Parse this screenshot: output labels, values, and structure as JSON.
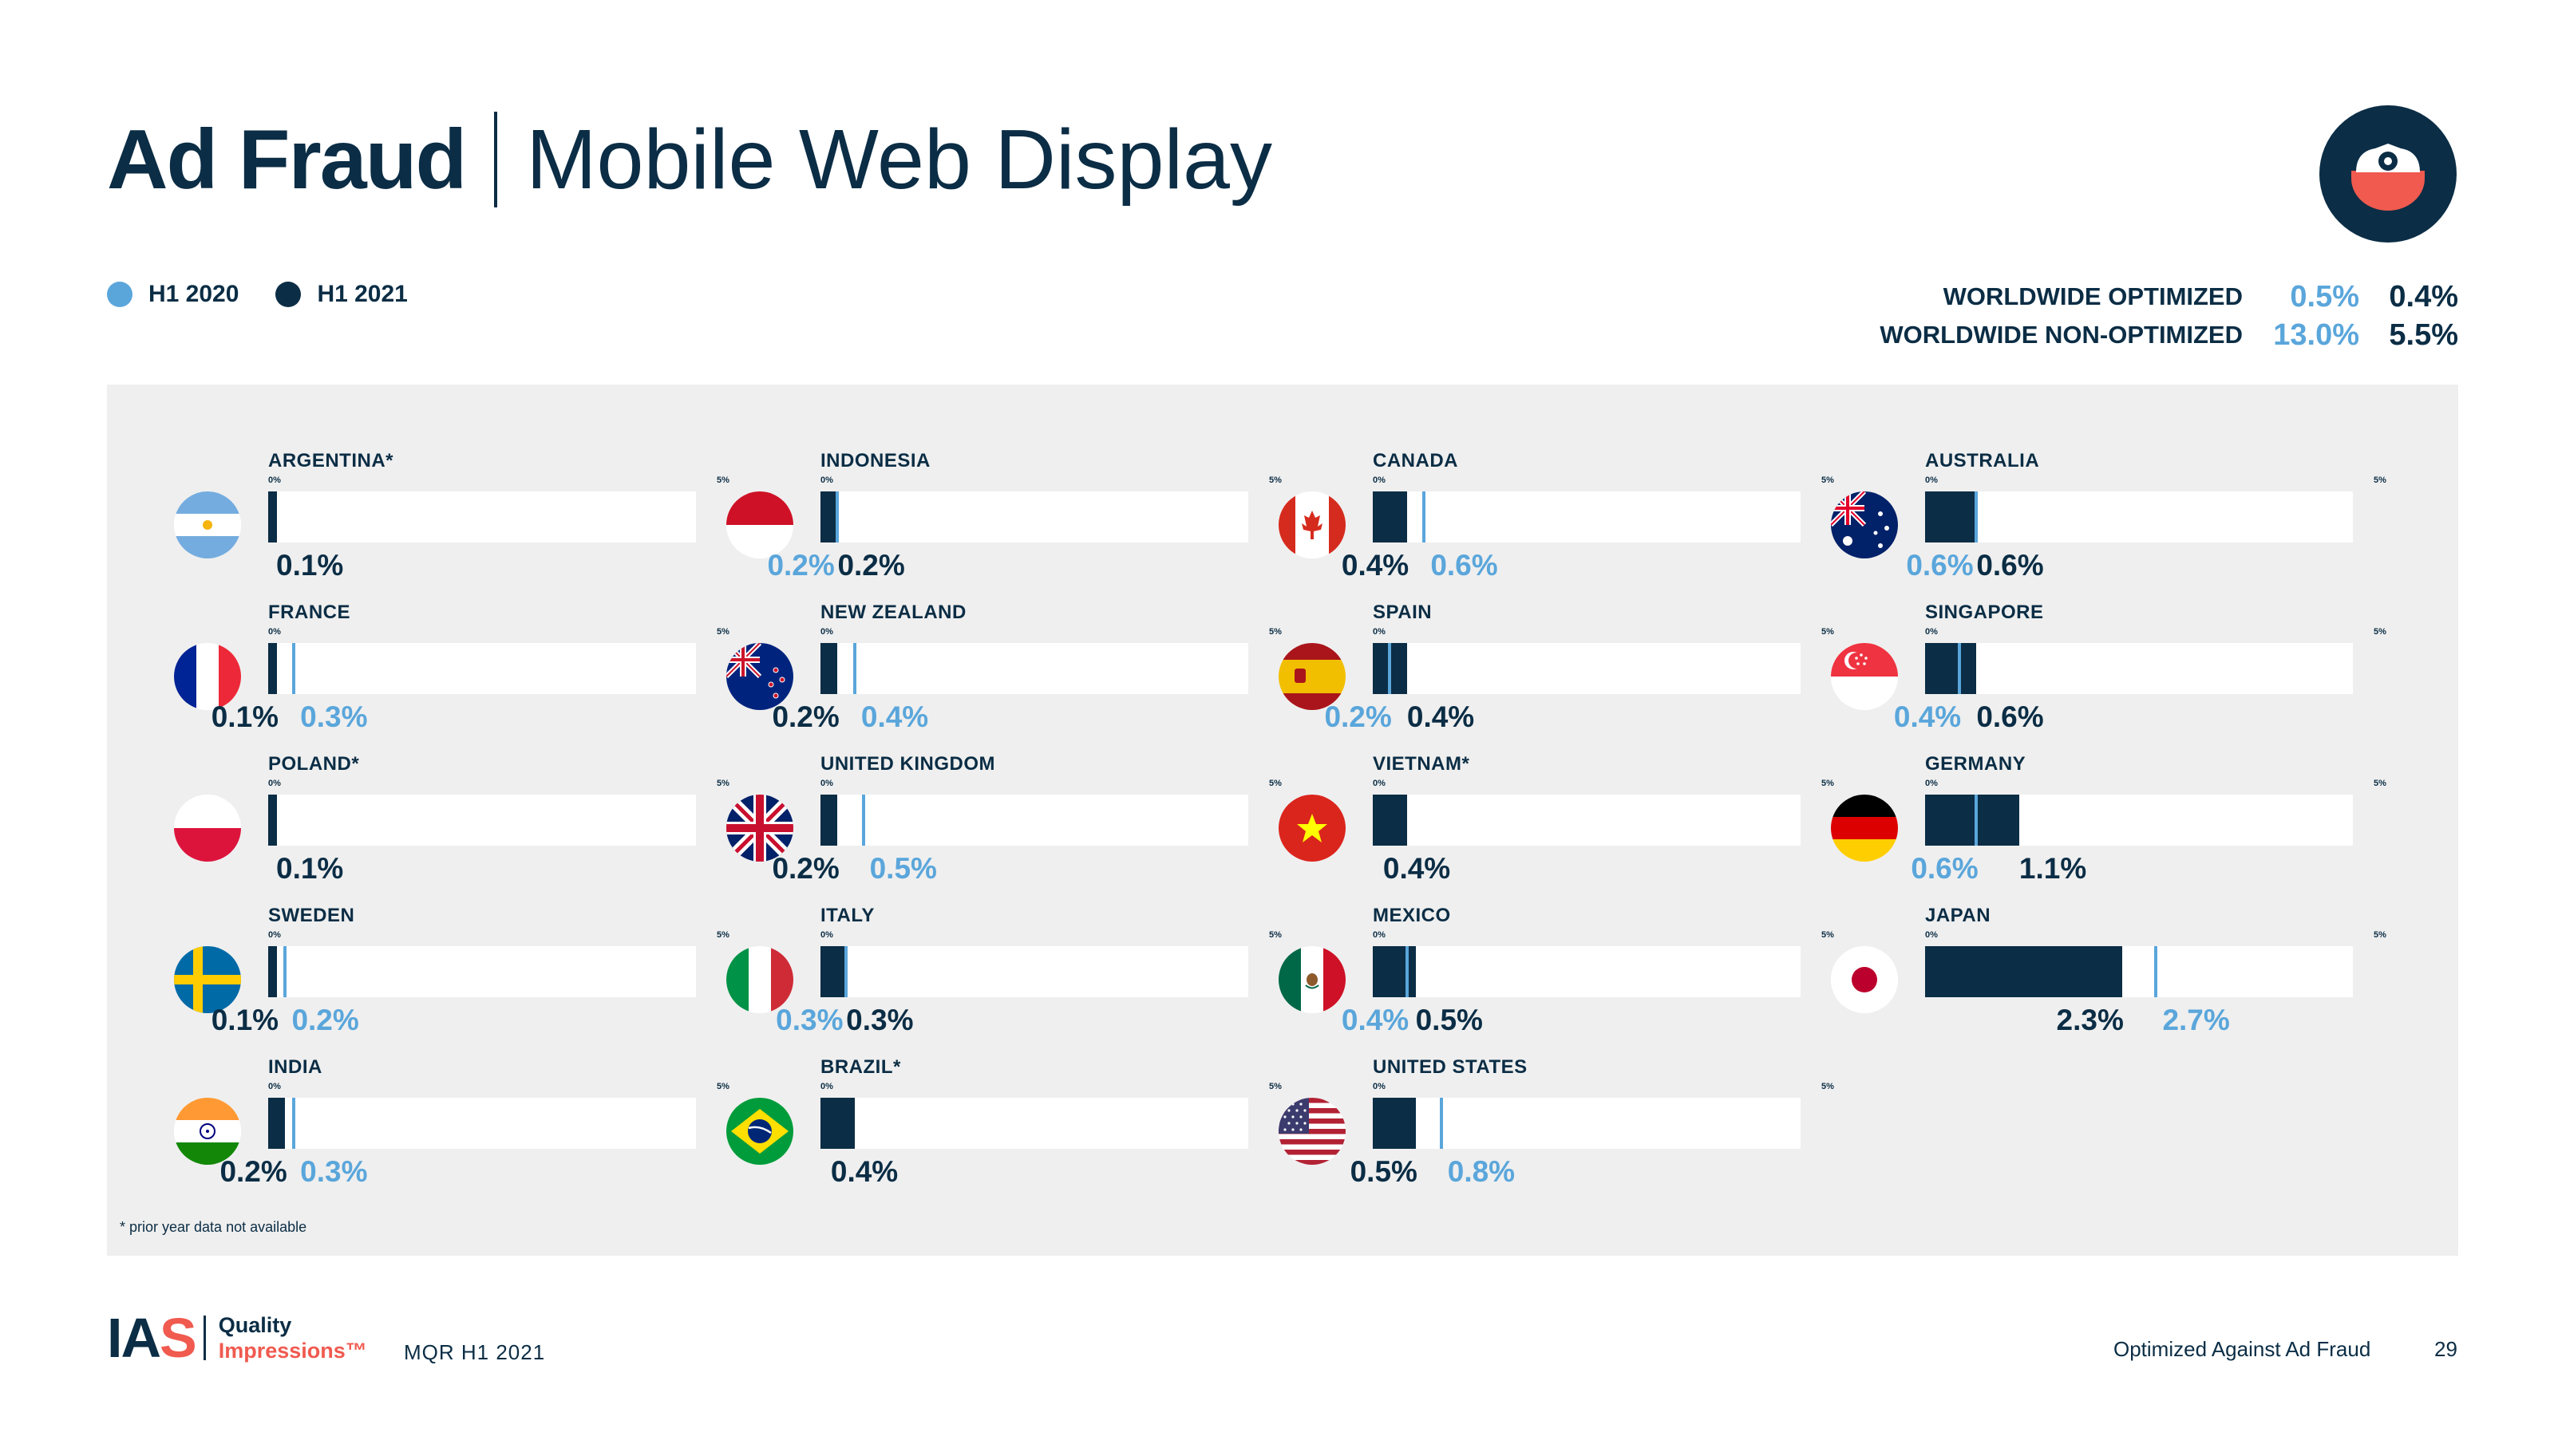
{
  "header": {
    "title_main": "Ad Fraud",
    "title_sub": "Mobile Web Display"
  },
  "legend": [
    {
      "label": "H1 2020",
      "color": "#5aa6db"
    },
    {
      "label": "H1 2021",
      "color": "#0b2d45"
    }
  ],
  "worldwide": [
    {
      "label": "WORLDWIDE OPTIMIZED",
      "h1_2020": "0.5%",
      "h1_2021": "0.4%"
    },
    {
      "label": "WORLDWIDE NON-OPTIMIZED",
      "h1_2020": "13.0%",
      "h1_2021": "5.5%"
    }
  ],
  "chart_data": {
    "type": "bar",
    "axis_min_label": "0%",
    "axis_max_label": "5%",
    "xlim": [
      0,
      5
    ],
    "unit": "%",
    "series_colors": {
      "h1_2020": "#5aa6db",
      "h1_2021": "#0b2d45"
    },
    "countries": [
      {
        "name": "ARGENTINA*",
        "flag": "argentina",
        "col": 0,
        "row": 0,
        "h1_2020": null,
        "h1_2021": 0.1,
        "label_2020": "",
        "label_2021": "0.1%"
      },
      {
        "name": "FRANCE",
        "flag": "france",
        "col": 0,
        "row": 1,
        "h1_2020": 0.3,
        "h1_2021": 0.1,
        "label_2020": "0.3%",
        "label_2021": "0.1%"
      },
      {
        "name": "POLAND*",
        "flag": "poland",
        "col": 0,
        "row": 2,
        "h1_2020": null,
        "h1_2021": 0.1,
        "label_2020": "",
        "label_2021": "0.1%"
      },
      {
        "name": "SWEDEN",
        "flag": "sweden",
        "col": 0,
        "row": 3,
        "h1_2020": 0.2,
        "h1_2021": 0.1,
        "label_2020": "0.2%",
        "label_2021": "0.1%"
      },
      {
        "name": "INDIA",
        "flag": "india",
        "col": 0,
        "row": 4,
        "h1_2020": 0.3,
        "h1_2021": 0.2,
        "label_2020": "0.3%",
        "label_2021": "0.2%"
      },
      {
        "name": "INDONESIA",
        "flag": "indonesia",
        "col": 1,
        "row": 0,
        "h1_2020": 0.2,
        "h1_2021": 0.2,
        "label_2020": "0.2%",
        "label_2021": "0.2%"
      },
      {
        "name": "NEW ZEALAND",
        "flag": "new-zealand",
        "col": 1,
        "row": 1,
        "h1_2020": 0.4,
        "h1_2021": 0.2,
        "label_2020": "0.4%",
        "label_2021": "0.2%"
      },
      {
        "name": "UNITED KINGDOM",
        "flag": "united-kingdom",
        "col": 1,
        "row": 2,
        "h1_2020": 0.5,
        "h1_2021": 0.2,
        "label_2020": "0.5%",
        "label_2021": "0.2%"
      },
      {
        "name": "ITALY",
        "flag": "italy",
        "col": 1,
        "row": 3,
        "h1_2020": 0.3,
        "h1_2021": 0.3,
        "label_2020": "0.3%",
        "label_2021": "0.3%"
      },
      {
        "name": "BRAZIL*",
        "flag": "brazil",
        "col": 1,
        "row": 4,
        "h1_2020": null,
        "h1_2021": 0.4,
        "label_2020": "",
        "label_2021": "0.4%"
      },
      {
        "name": "CANADA",
        "flag": "canada",
        "col": 2,
        "row": 0,
        "h1_2020": 0.6,
        "h1_2021": 0.4,
        "label_2020": "0.6%",
        "label_2021": "0.4%"
      },
      {
        "name": "SPAIN",
        "flag": "spain",
        "col": 2,
        "row": 1,
        "h1_2020": 0.2,
        "h1_2021": 0.4,
        "label_2020": "0.2%",
        "label_2021": "0.4%"
      },
      {
        "name": "VIETNAM*",
        "flag": "vietnam",
        "col": 2,
        "row": 2,
        "h1_2020": null,
        "h1_2021": 0.4,
        "label_2020": "",
        "label_2021": "0.4%"
      },
      {
        "name": "MEXICO",
        "flag": "mexico",
        "col": 2,
        "row": 3,
        "h1_2020": 0.4,
        "h1_2021": 0.5,
        "label_2020": "0.4%",
        "label_2021": "0.5%"
      },
      {
        "name": "UNITED STATES",
        "flag": "united-states",
        "col": 2,
        "row": 4,
        "h1_2020": 0.8,
        "h1_2021": 0.5,
        "label_2020": "0.8%",
        "label_2021": "0.5%"
      },
      {
        "name": "AUSTRALIA",
        "flag": "australia",
        "col": 3,
        "row": 0,
        "h1_2020": 0.6,
        "h1_2021": 0.6,
        "label_2020": "0.6%",
        "label_2021": "0.6%"
      },
      {
        "name": "SINGAPORE",
        "flag": "singapore",
        "col": 3,
        "row": 1,
        "h1_2020": 0.4,
        "h1_2021": 0.6,
        "label_2020": "0.4%",
        "label_2021": "0.6%"
      },
      {
        "name": "GERMANY",
        "flag": "germany",
        "col": 3,
        "row": 2,
        "h1_2020": 0.6,
        "h1_2021": 1.1,
        "label_2020": "0.6%",
        "label_2021": "1.1%"
      },
      {
        "name": "JAPAN",
        "flag": "japan",
        "col": 3,
        "row": 3,
        "h1_2020": 2.7,
        "h1_2021": 2.3,
        "label_2020": "2.7%",
        "label_2021": "2.3%"
      }
    ]
  },
  "footnote": "* prior year data not available",
  "footer": {
    "logo_ia": "IA",
    "logo_s": "S",
    "logo_quality": "Quality",
    "logo_impressions": "Impressions™",
    "report": "MQR H1 2021",
    "section": "Optimized Against Ad Fraud",
    "page_number": "29"
  }
}
